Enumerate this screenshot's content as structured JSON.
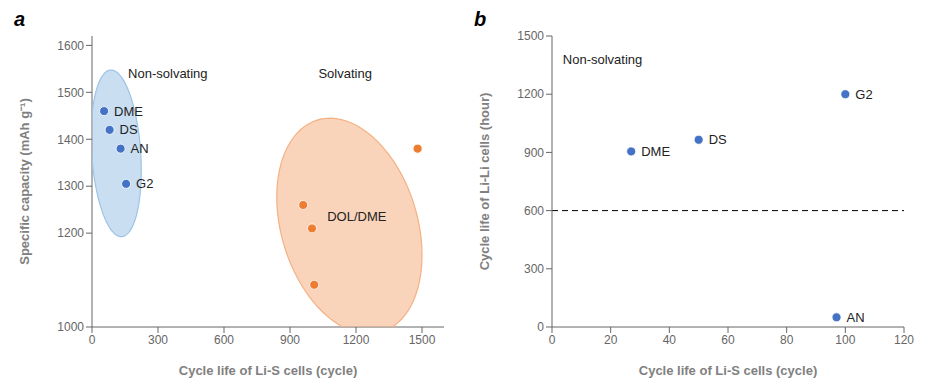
{
  "chart_data": [
    {
      "type": "scatter",
      "panel_label": "a",
      "x_label": "Cycle life of Li-S cells (cycle)",
      "y_label": "Specific capacity (mAh g⁻¹)",
      "xlim": [
        0,
        1600
      ],
      "ylim": [
        1000,
        1620
      ],
      "xticks": [
        0,
        300,
        600,
        900,
        1200,
        1500
      ],
      "yticks": [
        1000,
        1200,
        1300,
        1400,
        1500,
        1600
      ],
      "regions": [
        {
          "cx": 110,
          "cy": 1370,
          "width": 220,
          "height": 360,
          "angle": 12,
          "color": "#9dc3e6"
        },
        {
          "cx": 1170,
          "cy": 1215,
          "width": 680,
          "height": 430,
          "angle": -18,
          "color": "#f4b183"
        }
      ],
      "series": [
        {
          "color": "#4472c4",
          "x": [
            55,
            80,
            130,
            155
          ],
          "values": [
            1460,
            1420,
            1380,
            1305
          ],
          "labels": [
            "DME",
            "DS",
            "AN",
            "G2"
          ]
        },
        {
          "color": "#ed7d31",
          "x": [
            960,
            1000,
            1010,
            1480
          ],
          "values": [
            1260,
            1210,
            1090,
            1380
          ]
        }
      ],
      "annotations": [
        {
          "text": "DOL/DME",
          "x": 1060,
          "y": 1235
        },
        {
          "text": "Non-solvating",
          "x": 155,
          "y": 1540
        },
        {
          "text": "Solvating",
          "x": 1020,
          "y": 1540
        }
      ]
    },
    {
      "type": "scatter",
      "panel_label": "b",
      "x_label": "Cycle life of Li-S cells (cycle)",
      "y_label": "Cycle life of Li-Li cells (hour)",
      "xlim": [
        0,
        120
      ],
      "ylim": [
        0,
        1500
      ],
      "xticks": [
        0,
        20,
        40,
        60,
        80,
        100,
        120
      ],
      "yticks": [
        0,
        300,
        600,
        900,
        1200,
        1500
      ],
      "series": [
        {
          "color": "#4472c4",
          "x": [
            27,
            50,
            100,
            97
          ],
          "values": [
            905,
            965,
            1200,
            50
          ],
          "labels": [
            "DME",
            "DS",
            "G2",
            "AN"
          ]
        }
      ],
      "reference_lines": [
        {
          "y": 600,
          "color": "#000000",
          "line_style": "dashed"
        }
      ],
      "annotations": [
        {
          "text": "Non-solvating",
          "x": 3,
          "y": 1380
        }
      ]
    }
  ]
}
